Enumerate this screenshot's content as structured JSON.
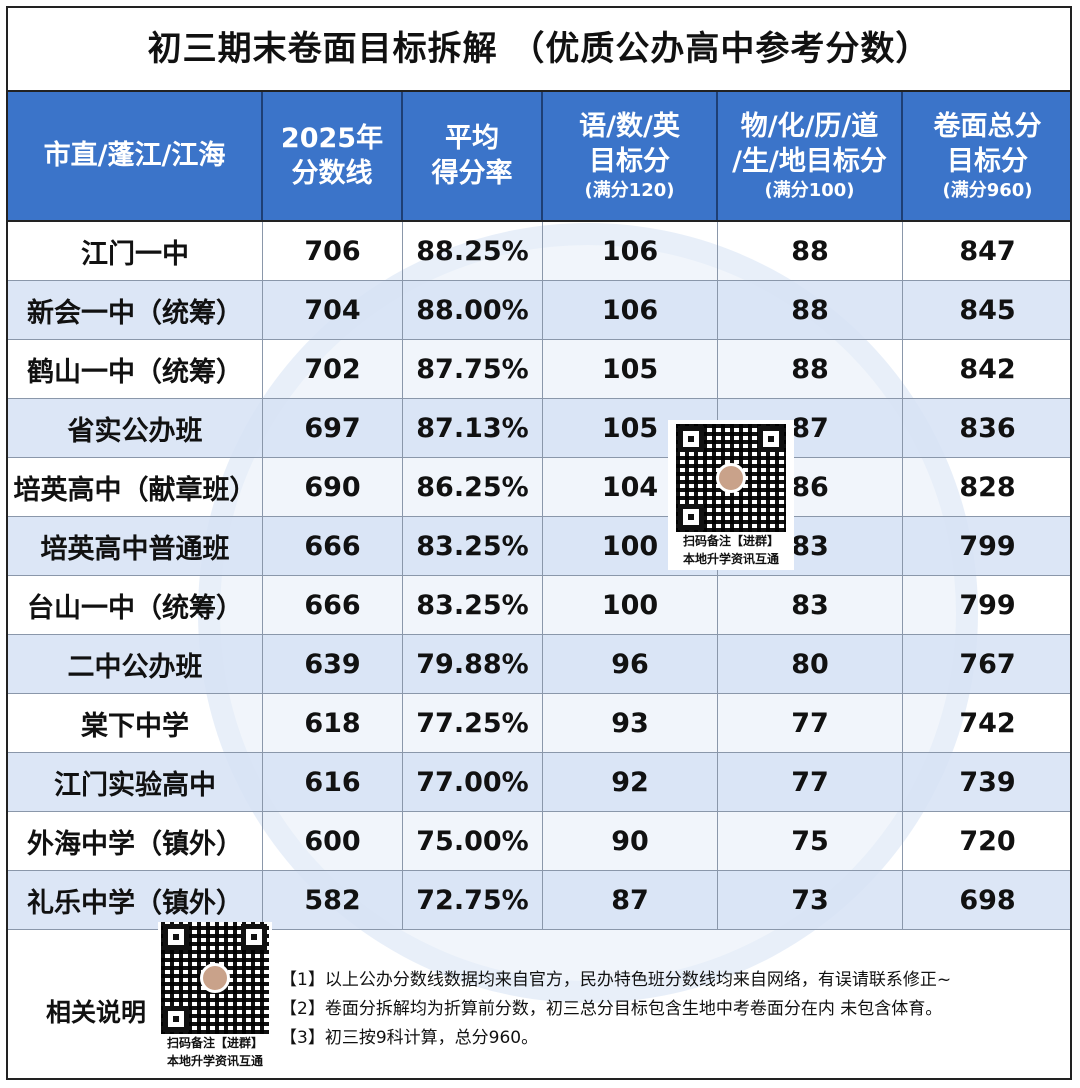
{
  "title": "初三期末卷面目标拆解 （优质公办高中参考分数）",
  "header": {
    "col0": "市直/蓬江/江海",
    "col1_line1": "2025年",
    "col1_line2": "分数线",
    "col2_line1": "平均",
    "col2_line2": "得分率",
    "col3_line1": "语/数/英",
    "col3_line2": "目标分",
    "col3_sub": "(满分120)",
    "col4_line1": "物/化/历/道",
    "col4_line2": "/生/地目标分",
    "col4_sub": "(满分100)",
    "col5_line1": "卷面总分",
    "col5_line2": "目标分",
    "col5_sub": "(满分960)"
  },
  "rows": [
    {
      "school": "江门一中",
      "line": "706",
      "rate": "88.25%",
      "main": "106",
      "other": "88",
      "total": "847"
    },
    {
      "school": "新会一中（统筹）",
      "line": "704",
      "rate": "88.00%",
      "main": "106",
      "other": "88",
      "total": "845"
    },
    {
      "school": "鹤山一中（统筹）",
      "line": "702",
      "rate": "87.75%",
      "main": "105",
      "other": "88",
      "total": "842"
    },
    {
      "school": "省实公办班",
      "line": "697",
      "rate": "87.13%",
      "main": "105",
      "other": "87",
      "total": "836"
    },
    {
      "school": "培英高中（献章班）",
      "line": "690",
      "rate": "86.25%",
      "main": "104",
      "other": "86",
      "total": "828"
    },
    {
      "school": "培英高中普通班",
      "line": "666",
      "rate": "83.25%",
      "main": "100",
      "other": "83",
      "total": "799"
    },
    {
      "school": "台山一中（统筹）",
      "line": "666",
      "rate": "83.25%",
      "main": "100",
      "other": "83",
      "total": "799"
    },
    {
      "school": "二中公办班",
      "line": "639",
      "rate": "79.88%",
      "main": "96",
      "other": "80",
      "total": "767"
    },
    {
      "school": "棠下中学",
      "line": "618",
      "rate": "77.25%",
      "main": "93",
      "other": "77",
      "total": "742"
    },
    {
      "school": "江门实验高中",
      "line": "616",
      "rate": "77.00%",
      "main": "92",
      "other": "77",
      "total": "739"
    },
    {
      "school": "外海中学（镇外）",
      "line": "600",
      "rate": "75.00%",
      "main": "90",
      "other": "75",
      "total": "720"
    },
    {
      "school": "礼乐中学（镇外）",
      "line": "582",
      "rate": "72.75%",
      "main": "87",
      "other": "73",
      "total": "698"
    }
  ],
  "qr_caption_line1": "扫码备注【进群】",
  "qr_caption_line2": "本地升学资讯互通",
  "notes_label": "相关说明",
  "notes": [
    "【1】以上公办分数线数据均来自官方，民办特色班分数线均来自网络，有误请联系修正~",
    "【2】卷面分拆解均为折算前分数，初三总分目标包含生地中考卷面分在内 未包含体育。",
    "【3】初三按9科计算，总分960。"
  ]
}
